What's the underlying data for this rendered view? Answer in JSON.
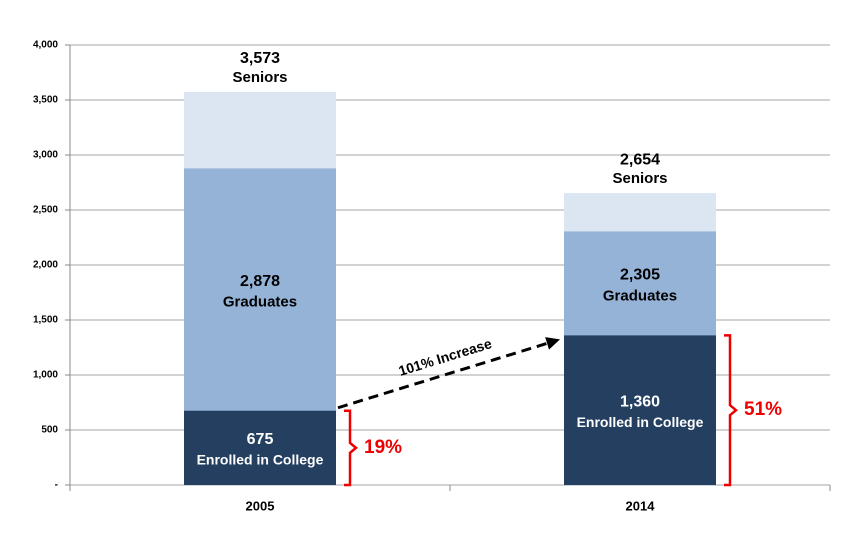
{
  "chart_data": {
    "type": "bar",
    "categories": [
      "2005",
      "2014"
    ],
    "series": [
      {
        "name": "Seniors",
        "color": "#dce6f2",
        "values": [
          3573,
          2654
        ],
        "value_labels": [
          "3,573",
          "2,654"
        ]
      },
      {
        "name": "Graduates",
        "color": "#95b3d7",
        "values": [
          2878,
          2305
        ],
        "value_labels": [
          "2,878",
          "2,305"
        ]
      },
      {
        "name": "Enrolled in College",
        "color": "#243f60",
        "values": [
          675,
          1360
        ],
        "value_labels": [
          "675",
          "1,360"
        ]
      }
    ],
    "ylim": [
      0,
      4000
    ],
    "yticks": [
      {
        "value": 0,
        "label": "-"
      },
      500,
      {
        "value": 1000,
        "label": "1,000"
      },
      {
        "value": 1500,
        "label": "1,500"
      },
      {
        "value": 2000,
        "label": "2,000"
      },
      {
        "value": 2500,
        "label": "2,500"
      },
      {
        "value": 3000,
        "label": "3,000"
      },
      {
        "value": 3500,
        "label": "3,500"
      },
      {
        "value": 4000,
        "label": "4,000"
      }
    ],
    "grid": true,
    "annotations": [
      "101% Increase",
      "19%",
      "51%"
    ]
  }
}
